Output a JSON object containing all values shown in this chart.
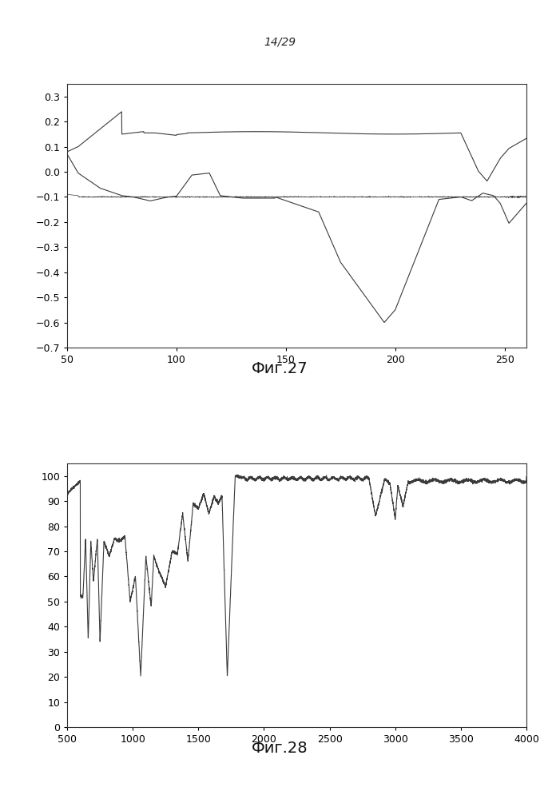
{
  "page_label": "14/29",
  "fig1_title": "Фиг.27",
  "fig2_title": "Фиг.28",
  "fig1_xlim": [
    50,
    260
  ],
  "fig1_ylim": [
    -0.7,
    0.35
  ],
  "fig1_xticks": [
    50,
    100,
    150,
    200,
    250
  ],
  "fig1_yticks": [
    0.3,
    0.2,
    0.1,
    0.0,
    -0.1,
    -0.2,
    -0.3,
    -0.4,
    -0.5,
    -0.6,
    -0.7
  ],
  "fig2_xlim": [
    500,
    4000
  ],
  "fig2_ylim": [
    0,
    105
  ],
  "fig2_xticks": [
    500,
    1000,
    1500,
    2000,
    2500,
    3000,
    3500,
    4000
  ],
  "fig2_yticks": [
    0,
    10,
    20,
    30,
    40,
    50,
    60,
    70,
    80,
    90,
    100
  ],
  "line_color": "#3a3a3a",
  "bg_color": "#ffffff",
  "tick_fontsize": 9,
  "label_fontsize": 14
}
